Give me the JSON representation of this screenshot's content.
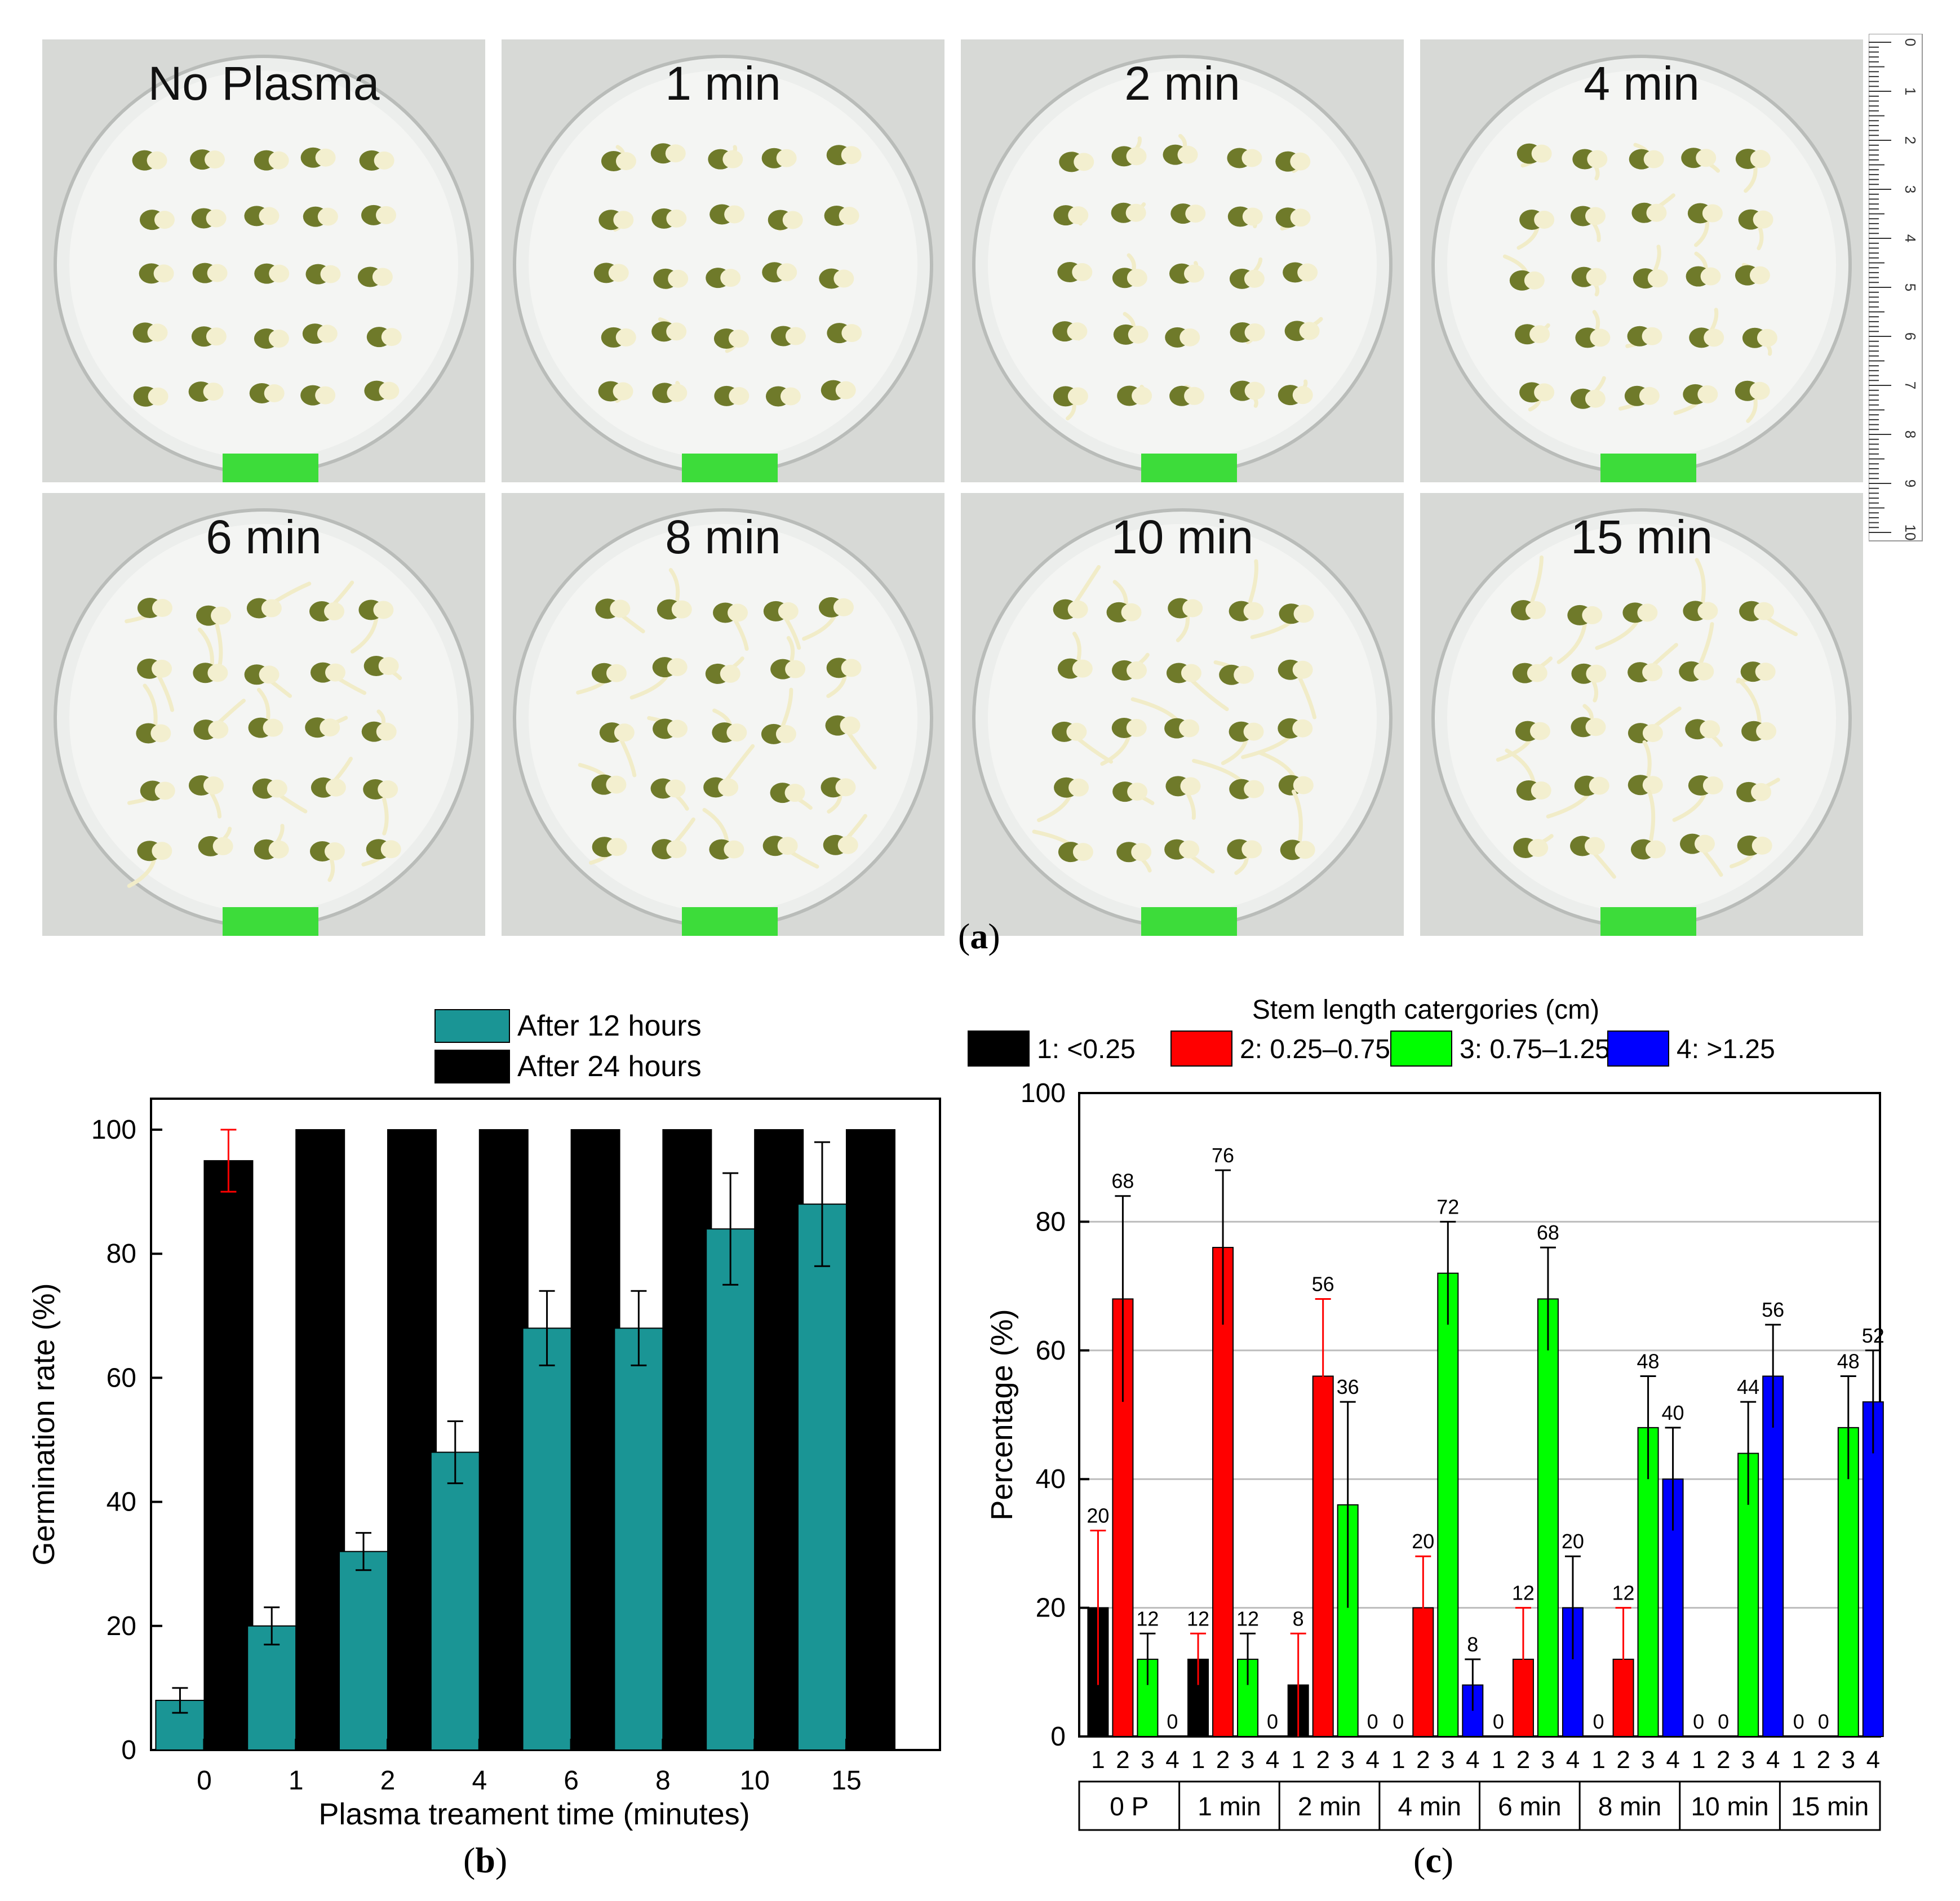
{
  "panel_a": {
    "caption_letter": "a",
    "photos": [
      {
        "label": "No Plasma",
        "sprout_level": 0.1
      },
      {
        "label": "1 min",
        "sprout_level": 0.25
      },
      {
        "label": "2 min",
        "sprout_level": 0.4
      },
      {
        "label": "4 min",
        "sprout_level": 0.55
      },
      {
        "label": "6 min",
        "sprout_level": 0.85
      },
      {
        "label": "8 min",
        "sprout_level": 0.85
      },
      {
        "label": "10 min",
        "sprout_level": 1.0
      },
      {
        "label": "15 min",
        "sprout_level": 0.95
      }
    ],
    "ruler": {
      "unit": "cm",
      "ticks": [
        "0",
        "1",
        "2",
        "3",
        "4",
        "5",
        "6",
        "7",
        "8",
        "9",
        "10"
      ]
    }
  },
  "colors": {
    "teal": "#1a9595",
    "black": "#000000",
    "red": "#ff0000",
    "green": "#00ff00",
    "blue": "#0000ff",
    "tape_green": "#3ddc3a",
    "photo_bg": "#d7d9d6",
    "seed_green": "#6f7a2a",
    "sprout": "#f1ecc8"
  },
  "chart_data": [
    {
      "type": "bar",
      "caption_letter": "b",
      "categories": [
        "0",
        "1",
        "2",
        "4",
        "6",
        "8",
        "10",
        "15"
      ],
      "series": [
        {
          "name": "After 12 hours",
          "values": [
            8,
            20,
            32,
            48,
            68,
            68,
            84,
            88
          ],
          "errors": [
            2,
            3,
            3,
            5,
            6,
            6,
            9,
            10
          ],
          "color": "#1a9595"
        },
        {
          "name": "After 24 hours",
          "values": [
            95,
            100,
            100,
            100,
            100,
            100,
            100,
            100
          ],
          "errors": [
            5,
            0,
            0,
            0,
            0,
            0,
            0,
            0
          ],
          "color": "#000000"
        }
      ],
      "title": "",
      "xlabel": "Plasma treament time (minutes)",
      "ylabel": "Germination rate (%)",
      "ylim": [
        0,
        105
      ],
      "yticks": [
        0,
        20,
        40,
        60,
        80,
        100
      ],
      "legend_placement": "top-center"
    },
    {
      "type": "bar",
      "caption_letter": "c",
      "legend_title": "Stem length catergories (cm)",
      "categories_labels": [
        "1",
        "2",
        "3",
        "4"
      ],
      "groups": [
        "0 P",
        "1 min",
        "2 min",
        "4 min",
        "6 min",
        "8 min",
        "10 min",
        "15 min"
      ],
      "series": [
        {
          "name": "1: <0.25",
          "values": [
            20,
            12,
            8,
            0,
            0,
            0,
            0,
            0
          ],
          "errors": [
            12,
            4,
            8,
            0,
            0,
            0,
            0,
            0
          ],
          "color": "#000000"
        },
        {
          "name": "2: 0.25–0.75",
          "values": [
            68,
            76,
            56,
            20,
            12,
            12,
            0,
            0
          ],
          "errors": [
            16,
            12,
            12,
            8,
            8,
            8,
            0,
            0
          ],
          "color": "#ff0000"
        },
        {
          "name": "3: 0.75–1.25",
          "values": [
            12,
            12,
            36,
            72,
            68,
            48,
            44,
            48
          ],
          "errors": [
            4,
            4,
            16,
            8,
            8,
            8,
            8,
            8
          ],
          "color": "#00ff00"
        },
        {
          "name": "4: >1.25",
          "values": [
            0,
            0,
            0,
            8,
            20,
            40,
            56,
            52
          ],
          "errors": [
            0,
            0,
            0,
            4,
            8,
            8,
            8,
            8
          ],
          "color": "#0000ff"
        }
      ],
      "value_labels": [
        [
          "20",
          "68",
          "12",
          "0"
        ],
        [
          "12",
          "76",
          "12",
          "0"
        ],
        [
          "8",
          "56",
          "36",
          "0"
        ],
        [
          "0",
          "20",
          "72",
          "8"
        ],
        [
          "0",
          "12",
          "68",
          "20"
        ],
        [
          "0",
          "12",
          "48",
          "40"
        ],
        [
          "0",
          "0",
          "44",
          "56"
        ],
        [
          "0",
          "0",
          "48",
          "52"
        ]
      ],
      "xlabel": "",
      "ylabel": "Percentage (%)",
      "ylim": [
        0,
        100
      ],
      "yticks": [
        0,
        20,
        40,
        60,
        80,
        100
      ],
      "grid": true,
      "legend_placement": "top"
    }
  ]
}
